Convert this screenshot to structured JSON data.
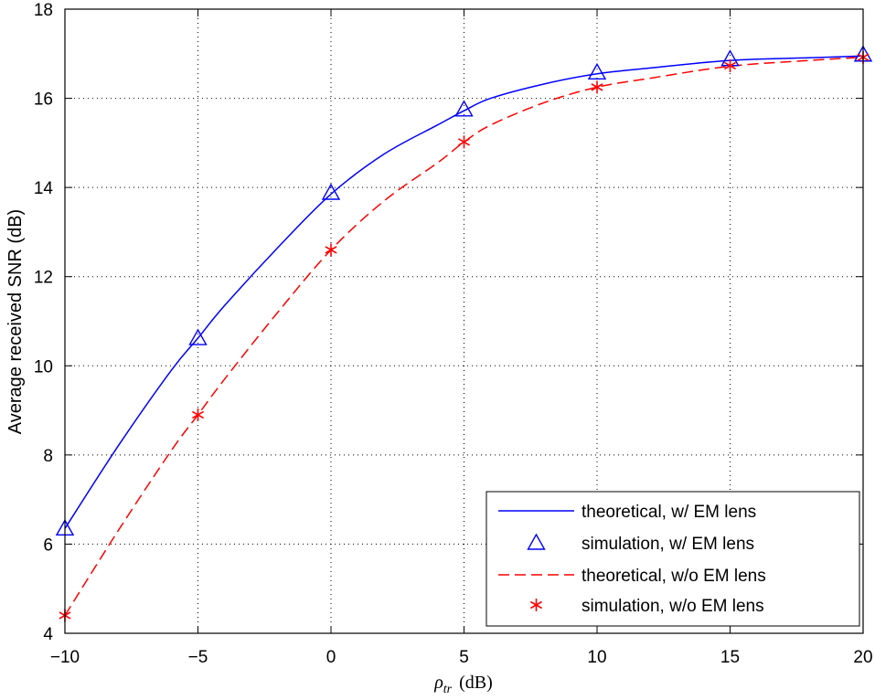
{
  "chart_data": {
    "type": "line",
    "title": "",
    "xlabel": "(dB)",
    "xlabel_symbol": "ρ",
    "xlabel_subscript": "tr",
    "ylabel": "Average received SNR (dB)",
    "xlim": [
      -10,
      20
    ],
    "ylim": [
      4,
      18
    ],
    "x_ticks": [
      -10,
      -5,
      0,
      5,
      10,
      15,
      20
    ],
    "x_tick_labels": [
      "−10",
      "−5",
      "0",
      "5",
      "10",
      "15",
      "20"
    ],
    "y_ticks": [
      4,
      6,
      8,
      10,
      12,
      14,
      16,
      18
    ],
    "y_tick_labels": [
      "4",
      "6",
      "8",
      "10",
      "12",
      "14",
      "16",
      "18"
    ],
    "grid": true,
    "legend_position": "bottom-right",
    "x": [
      -10,
      -5,
      0,
      5,
      10,
      15,
      20
    ],
    "series": [
      {
        "name": "theoretical, w/ EM lens",
        "style": "solid-line",
        "color": "#0000ff",
        "x": [
          -10,
          -8,
          -6,
          -5,
          -4,
          -2,
          0,
          2,
          4,
          5,
          6,
          8,
          10,
          12,
          15,
          18,
          20
        ],
        "values": [
          6.35,
          8.2,
          9.9,
          10.62,
          11.35,
          12.65,
          13.85,
          14.75,
          15.4,
          15.72,
          16.0,
          16.32,
          16.55,
          16.68,
          16.85,
          16.91,
          16.95
        ]
      },
      {
        "name": "simulation, w/ EM lens",
        "style": "triangle-marker",
        "color": "#0000ff",
        "values": [
          6.35,
          10.62,
          13.88,
          15.75,
          16.58,
          16.88,
          16.98
        ]
      },
      {
        "name": "theoretical, w/o EM lens",
        "style": "dashed-line",
        "color": "#ff0000",
        "x": [
          -10,
          -8,
          -6,
          -5,
          -4,
          -2,
          0,
          2,
          4,
          5,
          6,
          8,
          10,
          12,
          15,
          18,
          20
        ],
        "values": [
          4.4,
          6.3,
          8.1,
          8.9,
          9.7,
          11.2,
          12.6,
          13.7,
          14.55,
          15.02,
          15.4,
          15.9,
          16.25,
          16.45,
          16.72,
          16.85,
          16.92
        ]
      },
      {
        "name": "simulation, w/o EM lens",
        "style": "asterisk-marker",
        "color": "#ff0000",
        "values": [
          4.4,
          8.9,
          12.6,
          15.02,
          16.25,
          16.73,
          16.92
        ]
      }
    ]
  }
}
